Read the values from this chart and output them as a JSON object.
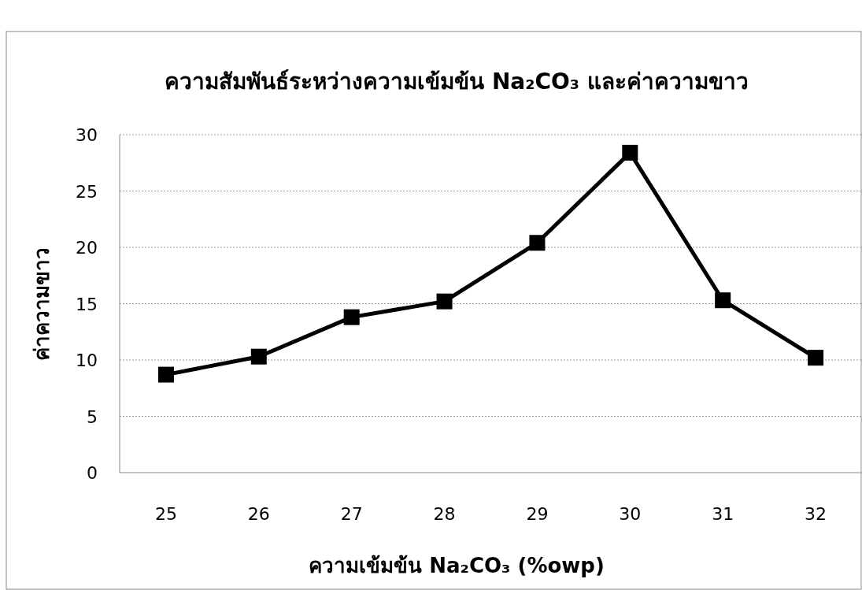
{
  "chart_data": {
    "type": "line",
    "title": "ความสัมพันธ์ระหว่างความเข้มข้น Na₂CO₃ และค่าความขาว",
    "xlabel": "ความเข้มข้น Na₂CO₃ (%owp)",
    "ylabel": "ค่าความขาว",
    "categories": [
      "25",
      "26",
      "27",
      "28",
      "29",
      "30",
      "31",
      "32"
    ],
    "series": [
      {
        "color": "#000000",
        "values": [
          8.7,
          10.3,
          13.8,
          15.2,
          20.4,
          28.4,
          15.3,
          10.2
        ]
      }
    ],
    "ylim": [
      0,
      30
    ],
    "yticks": [
      0,
      5,
      10,
      15,
      20,
      25,
      30
    ],
    "grid": "y",
    "marker": "square",
    "line_style": "solid"
  }
}
